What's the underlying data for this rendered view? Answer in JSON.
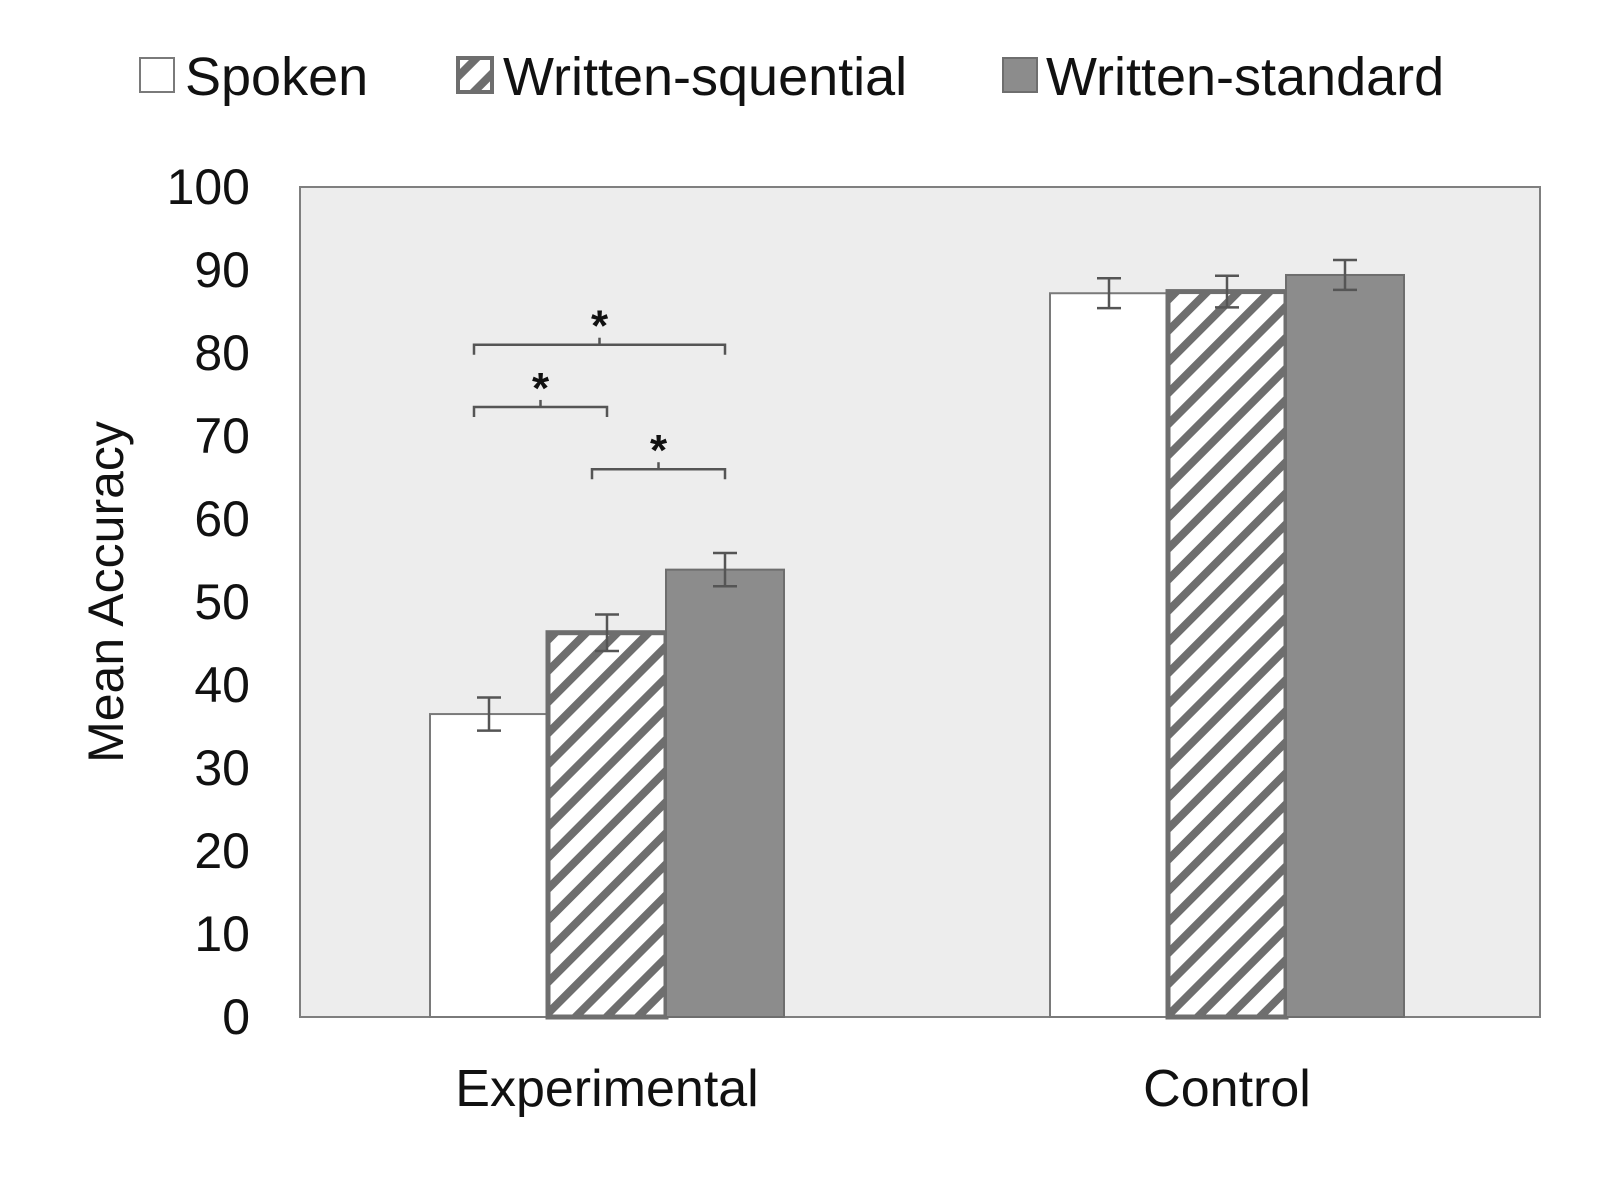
{
  "chart_data": {
    "type": "bar",
    "categories": [
      "Experimental",
      "Control"
    ],
    "series": [
      {
        "name": "Spoken",
        "values": [
          36.5,
          87.2
        ],
        "errors": [
          2.0,
          1.8
        ],
        "pattern": "solid",
        "color": "#ffffff",
        "stroke": "#7a7a7a"
      },
      {
        "name": "Written-squential",
        "values": [
          46.3,
          87.4
        ],
        "errors": [
          2.2,
          1.9
        ],
        "pattern": "hatch",
        "color": "#ffffff",
        "stroke": "#6e6e6e"
      },
      {
        "name": "Written-standard",
        "values": [
          53.9,
          89.4
        ],
        "errors": [
          2.0,
          1.8
        ],
        "pattern": "solid",
        "color": "#8c8c8c",
        "stroke": "#6e6e6e"
      }
    ],
    "title": "",
    "xlabel": "",
    "ylabel": "Mean Accuracy",
    "ylim": [
      0,
      100
    ],
    "yticks": [
      "0",
      "10",
      "20",
      "30",
      "40",
      "50",
      "60",
      "70",
      "80",
      "90",
      "100"
    ],
    "legend_position": "top",
    "plot_background": "#ededed",
    "significance": [
      {
        "category": 0,
        "from_series": 0,
        "to_series": 2,
        "y": 81,
        "label": "*"
      },
      {
        "category": 0,
        "from_series": 0,
        "to_series": 1,
        "y": 73.5,
        "label": "*"
      },
      {
        "category": 0,
        "from_series": 1,
        "to_series": 2,
        "y": 66,
        "label": "*"
      }
    ]
  }
}
